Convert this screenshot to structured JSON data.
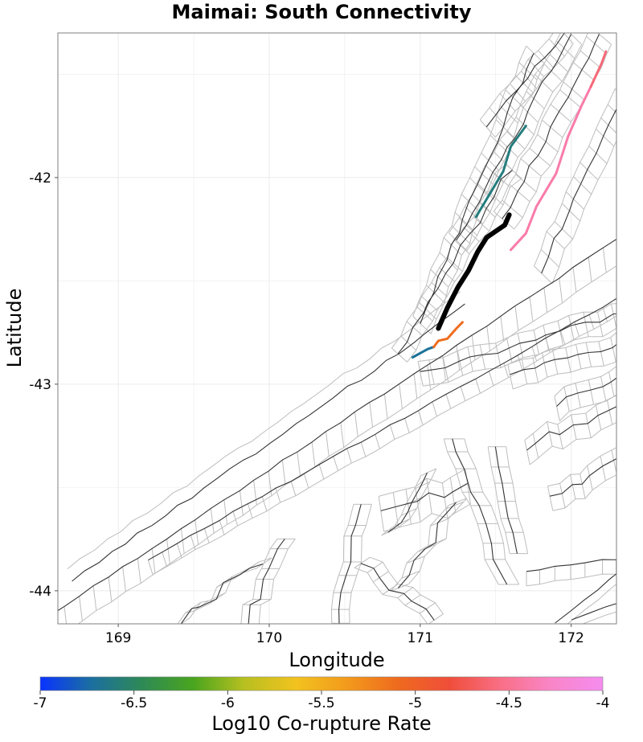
{
  "title": "Maimai: South Connectivity",
  "axes": {
    "xlabel": "Longitude",
    "ylabel": "Latitude",
    "x_ticks": [
      "169",
      "170",
      "171",
      "172"
    ],
    "y_ticks": [
      "-42",
      "-43",
      "-44"
    ],
    "xlim": [
      168.6,
      172.3
    ],
    "ylim": [
      -44.16,
      -41.3
    ],
    "grid": true
  },
  "colorbar": {
    "label": "Log10 Co-rupture Rate",
    "ticks": [
      "-7",
      "-6.5",
      "-6",
      "-5.5",
      "-5",
      "-4.5",
      "-4"
    ],
    "range": [
      -7,
      -4
    ],
    "colors": [
      "#0a33ff",
      "#1b6fa0",
      "#2e8a55",
      "#4aa51e",
      "#b8c020",
      "#f2c21f",
      "#f39a1c",
      "#ee6a1e",
      "#f04e3a",
      "#f96f86",
      "#f986c8",
      "#f58cf0"
    ]
  },
  "colors": {
    "fault_trace": "#333333",
    "fault_outline": "#bdbdbd",
    "source_fault": "#000000",
    "grid": "#ebebeb"
  },
  "chart_data": {
    "type": "map",
    "title": "Maimai: South Connectivity",
    "xlabel": "Longitude",
    "ylabel": "Latitude",
    "source_fault": {
      "path": [
        [
          171.12,
          -42.73
        ],
        [
          171.18,
          -42.63
        ],
        [
          171.25,
          -42.53
        ],
        [
          171.32,
          -42.45
        ],
        [
          171.38,
          -42.36
        ],
        [
          171.44,
          -42.29
        ],
        [
          171.5,
          -42.26
        ],
        [
          171.56,
          -42.23
        ],
        [
          171.59,
          -42.18
        ]
      ]
    },
    "connected_faults": [
      {
        "rate": -6.7,
        "path": [
          [
            170.95,
            -42.87
          ],
          [
            171.05,
            -42.83
          ],
          [
            171.09,
            -42.82
          ]
        ]
      },
      {
        "rate": -5.1,
        "path": [
          [
            171.09,
            -42.82
          ],
          [
            171.12,
            -42.79
          ],
          [
            171.18,
            -42.78
          ],
          [
            171.24,
            -42.73
          ],
          [
            171.28,
            -42.7
          ]
        ]
      },
      {
        "rate": -6.6,
        "path": [
          [
            171.37,
            -42.19
          ],
          [
            171.46,
            -42.08
          ],
          [
            171.55,
            -41.97
          ],
          [
            171.6,
            -41.85
          ],
          [
            171.7,
            -41.75
          ]
        ]
      },
      {
        "rate": -4.4,
        "path": [
          [
            171.6,
            -42.35
          ],
          [
            171.7,
            -42.27
          ],
          [
            171.77,
            -42.14
          ],
          [
            171.9,
            -41.98
          ],
          [
            171.98,
            -41.8
          ],
          [
            172.07,
            -41.65
          ],
          [
            172.13,
            -41.56
          ]
        ]
      },
      {
        "rate": -4.6,
        "path": [
          [
            172.13,
            -41.56
          ],
          [
            172.2,
            -41.45
          ],
          [
            172.23,
            -41.39
          ]
        ]
      }
    ]
  }
}
